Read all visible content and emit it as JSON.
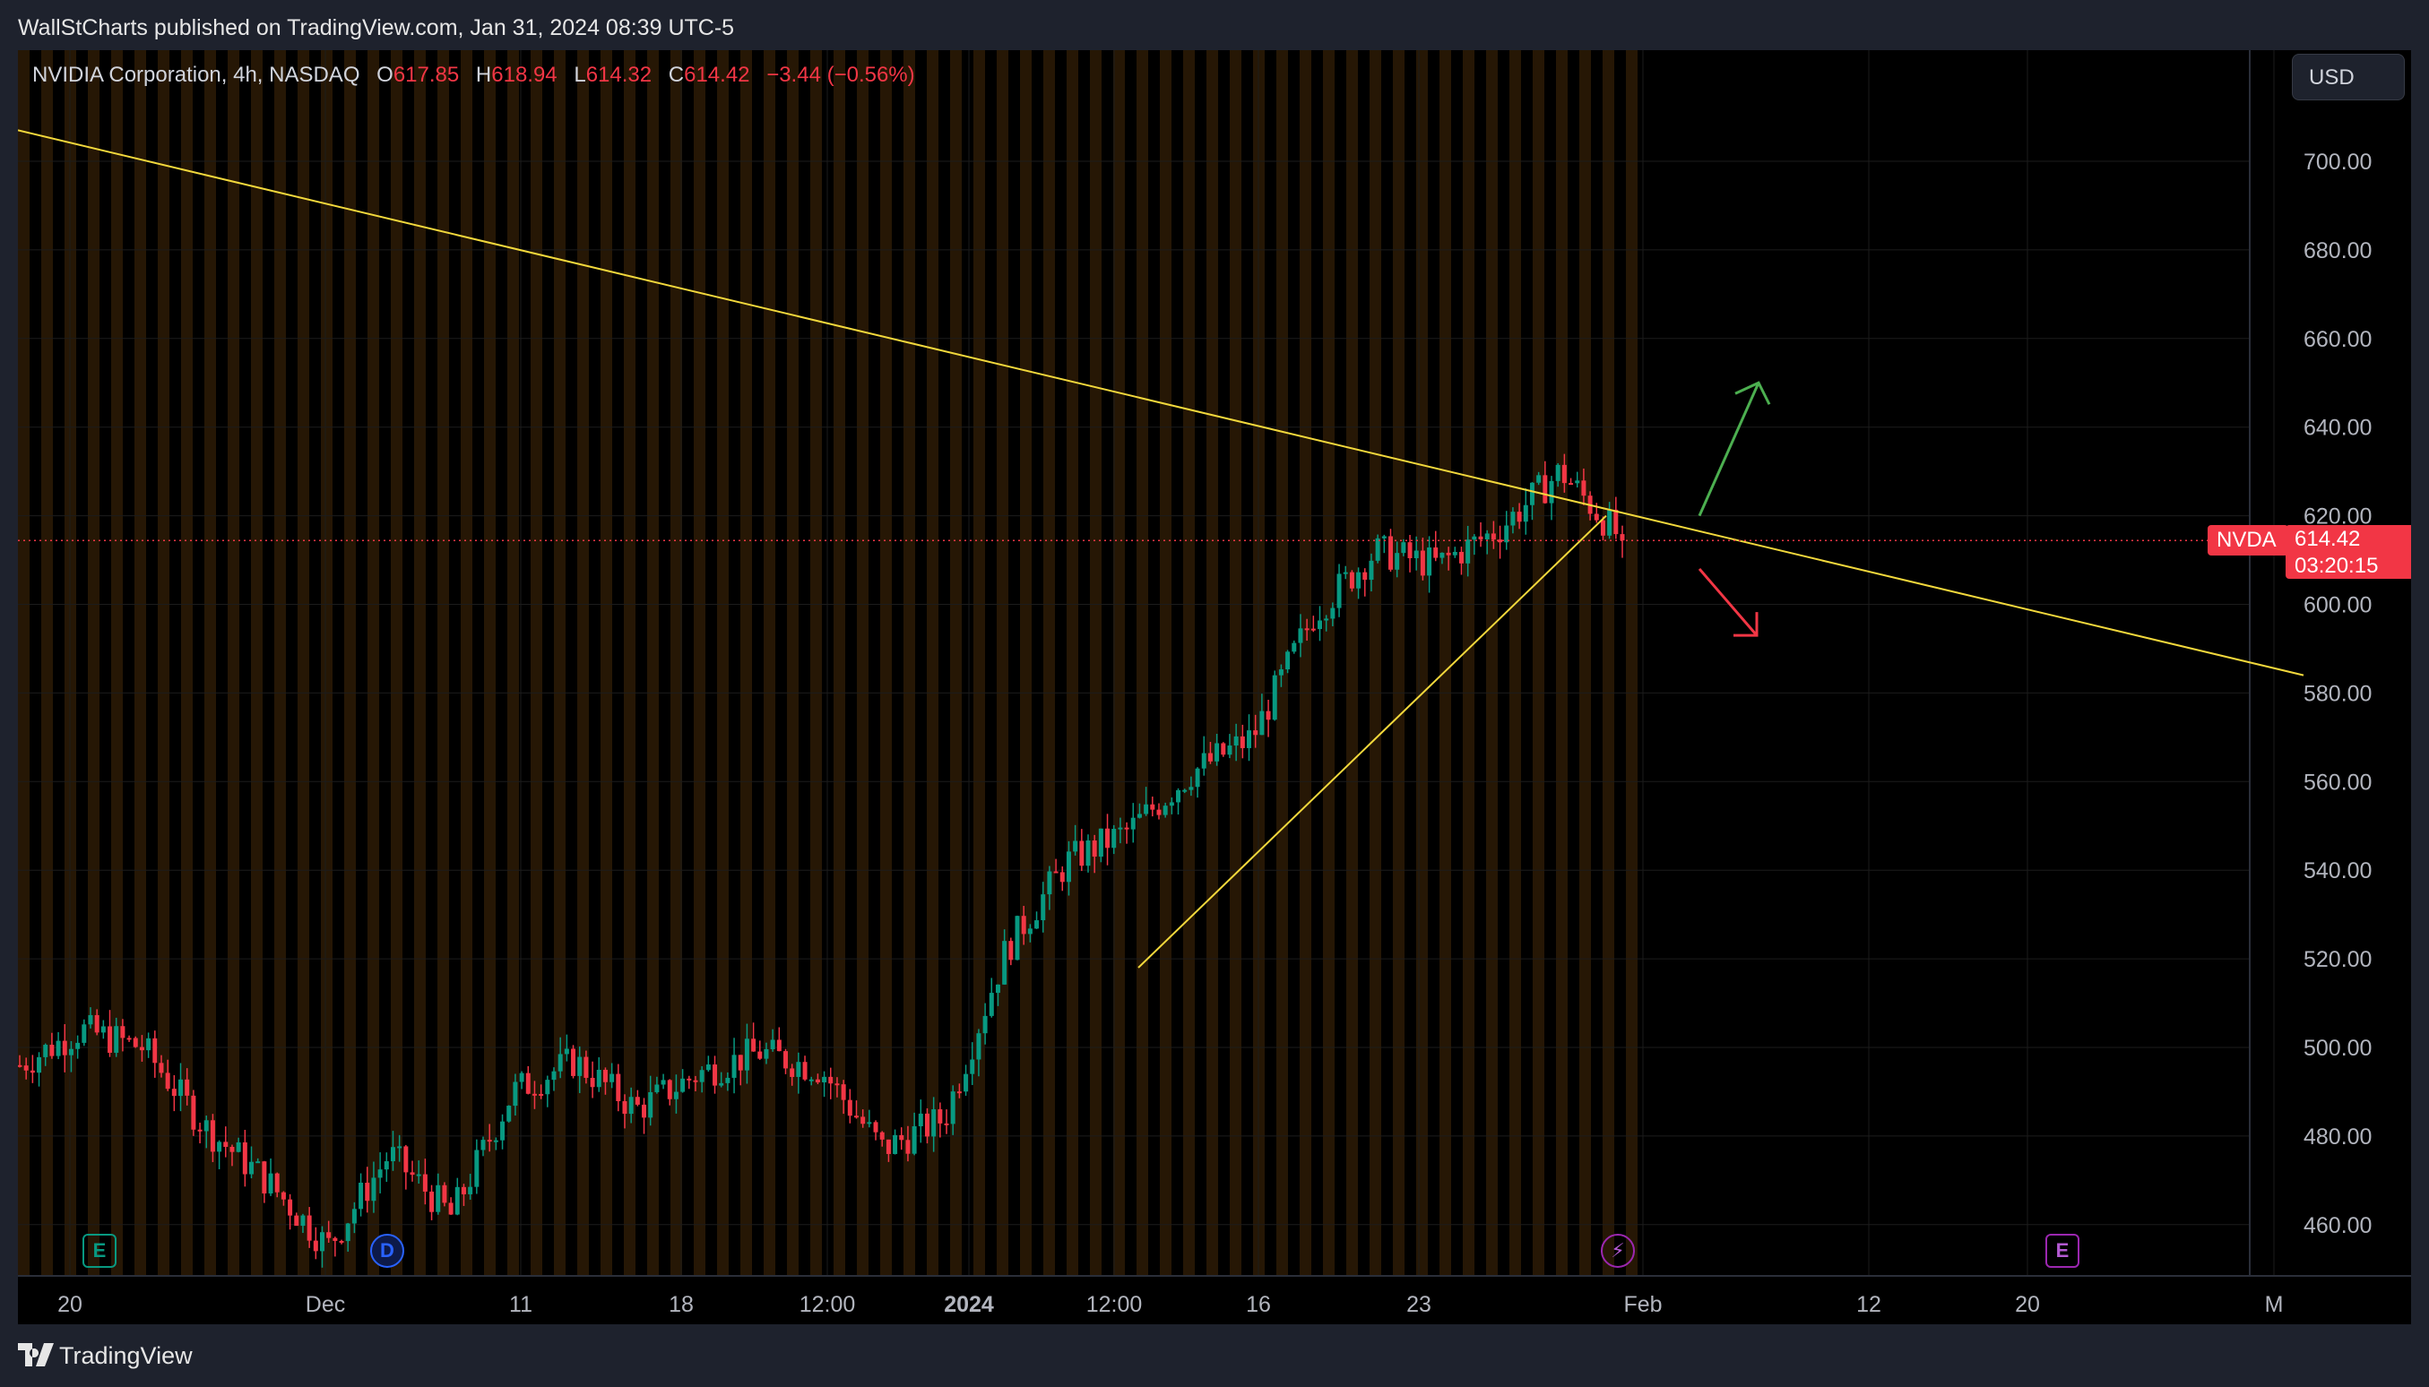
{
  "publish_line": "WallStCharts published on TradingView.com, Jan 31, 2024 08:39 UTC-5",
  "symbol_header": {
    "title": "NVIDIA Corporation, 4h, NASDAQ",
    "open_label": "O",
    "open": "617.85",
    "high_label": "H",
    "high": "618.94",
    "low_label": "L",
    "low": "614.32",
    "close_label": "C",
    "close": "614.42",
    "change": "−3.44 (−0.56%)"
  },
  "currency": "USD",
  "last_price": {
    "symbol": "NVDA",
    "price": "614.42",
    "countdown": "03:20:15"
  },
  "footer": {
    "brand": "TradingView"
  },
  "events": [
    {
      "icon": "earnings-icon",
      "letter": "E",
      "color": "#089981"
    },
    {
      "icon": "dividend-icon",
      "letter": "D",
      "color": "#2962ff"
    },
    {
      "icon": "split-icon",
      "letter": "⚡",
      "color": "#9c27b0"
    },
    {
      "icon": "earnings-upcoming-icon",
      "letter": "E",
      "color": "#9c27b0"
    }
  ],
  "colors": {
    "up": "#089981",
    "down": "#f23645",
    "trendline": "#f2d83c",
    "arrow_up": "#4caf50",
    "arrow_down": "#f23645",
    "session_band": "#2a1a05"
  },
  "chart_data": {
    "type": "candlestick",
    "symbol": "NVDA",
    "interval": "4h",
    "ylim": [
      448,
      725
    ],
    "y_ticks": [
      "700.00",
      "680.00",
      "660.00",
      "640.00",
      "620.00",
      "600.00",
      "580.00",
      "560.00",
      "540.00",
      "520.00",
      "500.00",
      "480.00",
      "460.00"
    ],
    "x_ticks": [
      "20",
      "Dec",
      "11",
      "18",
      "12:00",
      "2024",
      "12:00",
      "16",
      "23",
      "Feb",
      "12",
      "20",
      "M"
    ],
    "close_path": [
      [
        "20",
        496
      ],
      [
        "20",
        504
      ],
      [
        "20",
        500
      ],
      [
        "20",
        482
      ],
      [
        "Dec",
        470
      ],
      [
        "Dec",
        455
      ],
      [
        "11",
        476
      ],
      [
        "11",
        462
      ],
      [
        "18",
        490
      ],
      [
        "18",
        497
      ],
      [
        "18",
        486
      ],
      [
        "12:00",
        494
      ],
      [
        "12:00",
        499
      ],
      [
        "12:00",
        495
      ],
      [
        "2024",
        477
      ],
      [
        "2024",
        484
      ],
      [
        "12:00",
        522
      ],
      [
        "12:00",
        542
      ],
      [
        "16",
        549
      ],
      [
        "16",
        562
      ],
      [
        "16",
        570
      ],
      [
        "23",
        598
      ],
      [
        "23",
        612
      ],
      [
        "23",
        609
      ],
      [
        "23",
        617
      ],
      [
        "23",
        630
      ],
      [
        "23",
        614.42
      ]
    ],
    "trendlines": [
      {
        "from": [
          "20",
          707
        ],
        "to": [
          "M",
          584
        ]
      },
      {
        "from": [
          "12:00",
          518
        ],
        "to": [
          "23",
          620
        ]
      }
    ],
    "arrows": [
      {
        "direction": "up",
        "from": 620,
        "to": 650
      },
      {
        "direction": "down",
        "from": 608,
        "to": 593
      }
    ],
    "last_close": 614.42
  }
}
